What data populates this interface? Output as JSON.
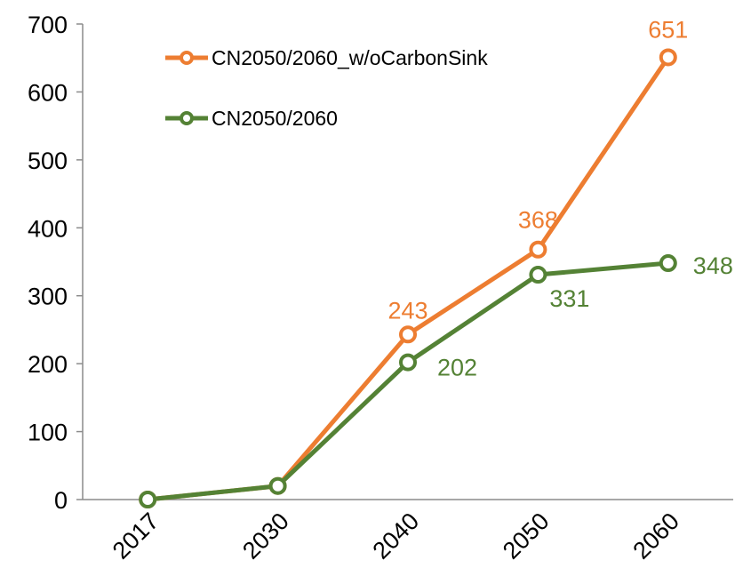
{
  "chart_data": {
    "type": "line",
    "title": "",
    "xlabel": "",
    "ylabel": "",
    "categories": [
      "2017",
      "2030",
      "2040",
      "2050",
      "2060"
    ],
    "ylim": [
      0,
      700
    ],
    "yticks": [
      0,
      100,
      200,
      300,
      400,
      500,
      600,
      700
    ],
    "ytick_labels": [
      "0",
      "100",
      "200",
      "300",
      "400",
      "500",
      "600",
      "700"
    ],
    "grid": false,
    "legend_position": "top-left",
    "series": [
      {
        "name": "CN2050/2060_w/oCarbonSink",
        "color": "#ED7D31",
        "values": [
          0,
          20,
          243,
          368,
          651
        ],
        "data_labels": [
          "",
          "",
          "243",
          "368",
          "651"
        ]
      },
      {
        "name": "CN2050/2060",
        "color": "#548235",
        "values": [
          0,
          20,
          202,
          331,
          348
        ],
        "data_labels": [
          "",
          "",
          "202",
          "331",
          "348"
        ]
      }
    ]
  }
}
